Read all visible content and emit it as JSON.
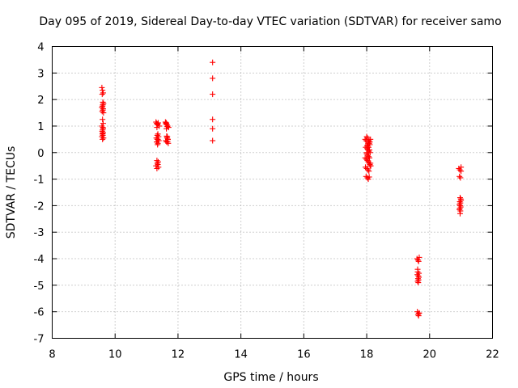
{
  "chart_data": {
    "type": "scatter",
    "title": "Day 095 of 2019, Sidereal Day-to-day VTEC variation (SDTVAR) for receiver samo",
    "xlabel": "GPS time / hours",
    "ylabel": "SDTVAR / TECUs",
    "xlim": [
      8,
      22
    ],
    "ylim": [
      -7,
      4
    ],
    "xticks": [
      8,
      10,
      12,
      14,
      16,
      18,
      20,
      22
    ],
    "yticks": [
      -7,
      -6,
      -5,
      -4,
      -3,
      -2,
      -1,
      0,
      1,
      2,
      3,
      4
    ],
    "grid": true,
    "marker": "+",
    "color": "#ff0000",
    "series": [
      {
        "name": "SDTVAR",
        "x": [
          9.58,
          9.6,
          9.62,
          9.59,
          9.63,
          9.61,
          9.6,
          9.58,
          9.62,
          9.61,
          9.59,
          9.63,
          9.6,
          9.62,
          9.58,
          9.61,
          9.6,
          9.59,
          9.62,
          9.6,
          9.61,
          9.58,
          9.63,
          9.6,
          9.59,
          9.61,
          9.62,
          9.6,
          11.3,
          11.32,
          11.35,
          11.37,
          11.4,
          11.33,
          11.36,
          11.38,
          11.31,
          11.34,
          11.39,
          11.32,
          11.36,
          11.35,
          11.33,
          11.37,
          11.34,
          11.36,
          11.3,
          11.38,
          11.33,
          11.35,
          11.36,
          11.34,
          11.37,
          11.6,
          11.62,
          11.65,
          11.67,
          11.7,
          11.63,
          11.66,
          11.68,
          11.61,
          11.64,
          11.69,
          11.62,
          11.66,
          11.65,
          11.63,
          11.67,
          11.64,
          11.68,
          13.1,
          13.1,
          13.1,
          13.1,
          13.1,
          13.1,
          17.95,
          17.98,
          18.0,
          18.02,
          18.05,
          18.08,
          18.1,
          18.12,
          17.97,
          18.01,
          18.04,
          18.07,
          18.11,
          18.0,
          18.03,
          18.06,
          18.09,
          17.99,
          18.02,
          18.05,
          18.08,
          18.1,
          18.13,
          17.96,
          18.0,
          18.04,
          18.07,
          18.11,
          18.01,
          18.03,
          18.06,
          18.09,
          17.98,
          18.02,
          18.05,
          18.08,
          18.12,
          17.95,
          18.0,
          18.04,
          18.07,
          18.1,
          19.6,
          19.63,
          19.65,
          19.67,
          19.62,
          19.66,
          19.61,
          19.64,
          19.66,
          19.63,
          19.65,
          19.62,
          19.64,
          19.61,
          19.66,
          19.63,
          19.65,
          19.67,
          19.62,
          19.64,
          20.93,
          20.96,
          21.0,
          20.95,
          20.98,
          20.97,
          20.99,
          21.0,
          20.96,
          20.98,
          20.95,
          20.97,
          20.99,
          20.96,
          20.98,
          20.97,
          21.0,
          20.95
        ],
        "y": [
          2.45,
          2.35,
          2.25,
          2.2,
          1.85,
          1.8,
          1.75,
          1.7,
          1.65,
          1.6,
          1.55,
          1.5,
          1.25,
          1.1,
          1.0,
          0.95,
          0.85,
          0.8,
          0.75,
          0.7,
          0.65,
          0.6,
          0.55,
          0.5,
          1.7,
          1.9,
          0.9,
          0.72,
          1.15,
          1.1,
          1.05,
          1.12,
          1.0,
          0.95,
          0.7,
          0.6,
          0.55,
          0.5,
          0.45,
          0.4,
          0.35,
          0.3,
          -0.3,
          -0.35,
          -0.4,
          -0.45,
          -0.5,
          -0.55,
          -0.6,
          1.08,
          0.5,
          0.65,
          0.45,
          1.15,
          1.1,
          1.05,
          1.0,
          0.95,
          0.9,
          0.6,
          0.5,
          0.45,
          0.4,
          0.35,
          1.08,
          0.98,
          0.55,
          1.12,
          0.42,
          0.62,
          0.5,
          3.4,
          2.8,
          2.2,
          1.25,
          0.9,
          0.45,
          0.5,
          0.45,
          0.6,
          0.55,
          0.4,
          0.35,
          0.3,
          0.5,
          0.2,
          0.15,
          0.1,
          0.05,
          0.0,
          -0.05,
          -0.1,
          -0.15,
          -0.2,
          -0.25,
          -0.3,
          -0.35,
          -0.4,
          -0.45,
          -0.5,
          -0.55,
          -0.6,
          -0.65,
          -0.7,
          -0.5,
          0.25,
          0.3,
          0.2,
          0.1,
          -0.9,
          -0.95,
          -1.0,
          -0.92,
          -0.4,
          -0.2,
          0.0,
          0.35,
          0.45,
          0.4,
          -4.0,
          -4.05,
          -4.1,
          -3.95,
          -4.5,
          -4.55,
          -4.6,
          -4.65,
          -4.7,
          -4.75,
          -4.8,
          -4.85,
          -4.9,
          -6.0,
          -6.05,
          -6.1,
          -6.15,
          -6.05,
          -4.4,
          -6.1,
          -0.6,
          -0.65,
          -0.7,
          -0.9,
          -0.95,
          -1.7,
          -1.75,
          -1.8,
          -1.85,
          -1.9,
          -1.95,
          -2.0,
          -2.05,
          -2.1,
          -2.2,
          -2.3,
          -0.55,
          -2.15
        ]
      }
    ]
  }
}
